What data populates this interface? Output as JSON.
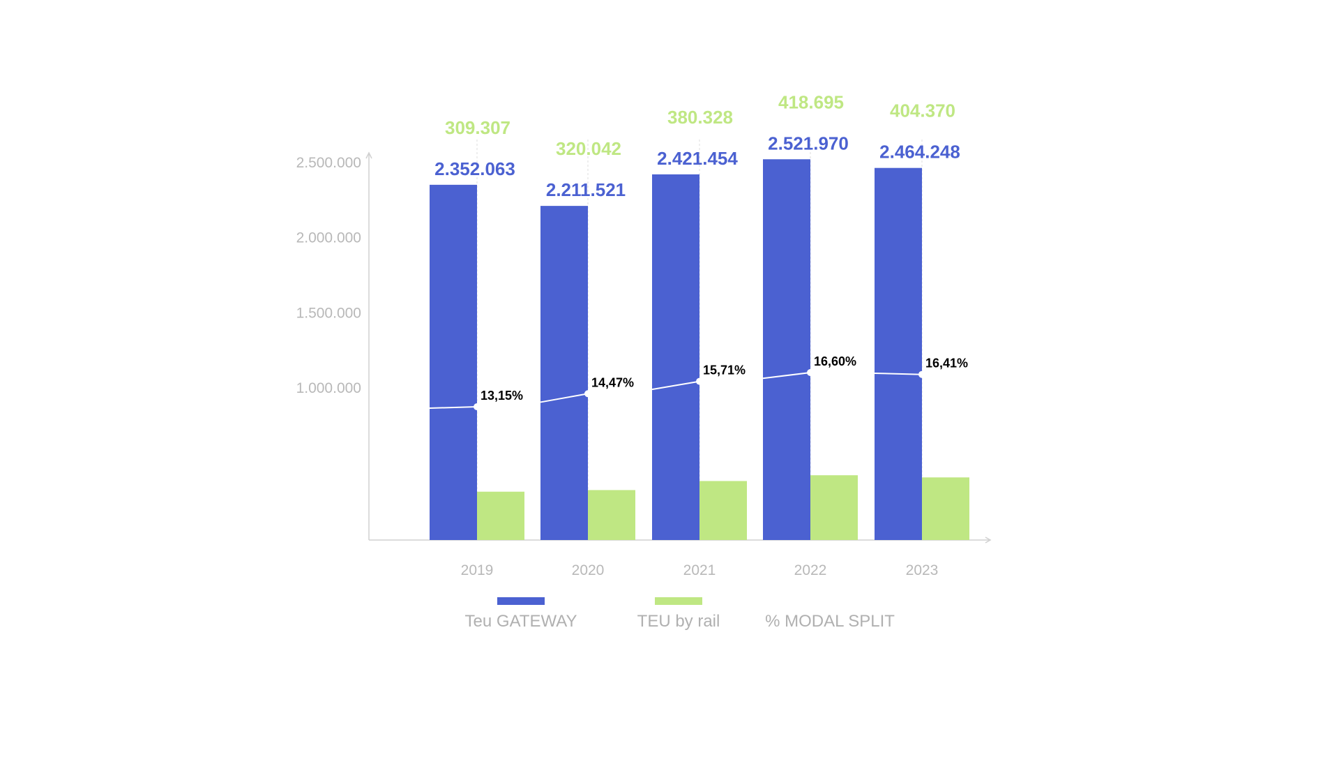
{
  "chart_data": {
    "type": "bar",
    "categories": [
      "2019",
      "2020",
      "2021",
      "2022",
      "2023"
    ],
    "series": [
      {
        "name": "Teu GATEWAY",
        "values": [
          2352063,
          2211521,
          2421454,
          2521970,
          2464248
        ],
        "labels": [
          "2.352.063",
          "2.211.521",
          "2.421.454",
          "2.521.970",
          "2.464.248"
        ],
        "color": "#4b61d1"
      },
      {
        "name": "TEU by rail",
        "values": [
          309307,
          320042,
          380328,
          418695,
          404370
        ],
        "labels": [
          "309.307",
          "320.042",
          "380.328",
          "418.695",
          "404.370"
        ],
        "color": "#bfe783"
      },
      {
        "name": "% MODAL SPLIT",
        "type": "line",
        "values": [
          13.15,
          14.47,
          15.71,
          16.6,
          16.41
        ],
        "labels": [
          "13,15%",
          "14,47%",
          "15,71%",
          "16,60%",
          "16,41%"
        ],
        "color": "#ffffff"
      }
    ],
    "y_ticks": [
      {
        "value": 1000000,
        "label": "1.000.000"
      },
      {
        "value": 1500000,
        "label": "1.500.000"
      },
      {
        "value": 2000000,
        "label": "2.000.000"
      },
      {
        "value": 2500000,
        "label": "2.500.000"
      }
    ],
    "ylim": [
      0,
      2500000
    ],
    "grid": false,
    "legend_position": "bottom",
    "colors": {
      "axis": "#d0d0d0",
      "tick_text": "#b8b8b8",
      "legend_text": "#b0b0b0",
      "split_label": "#000000"
    }
  }
}
